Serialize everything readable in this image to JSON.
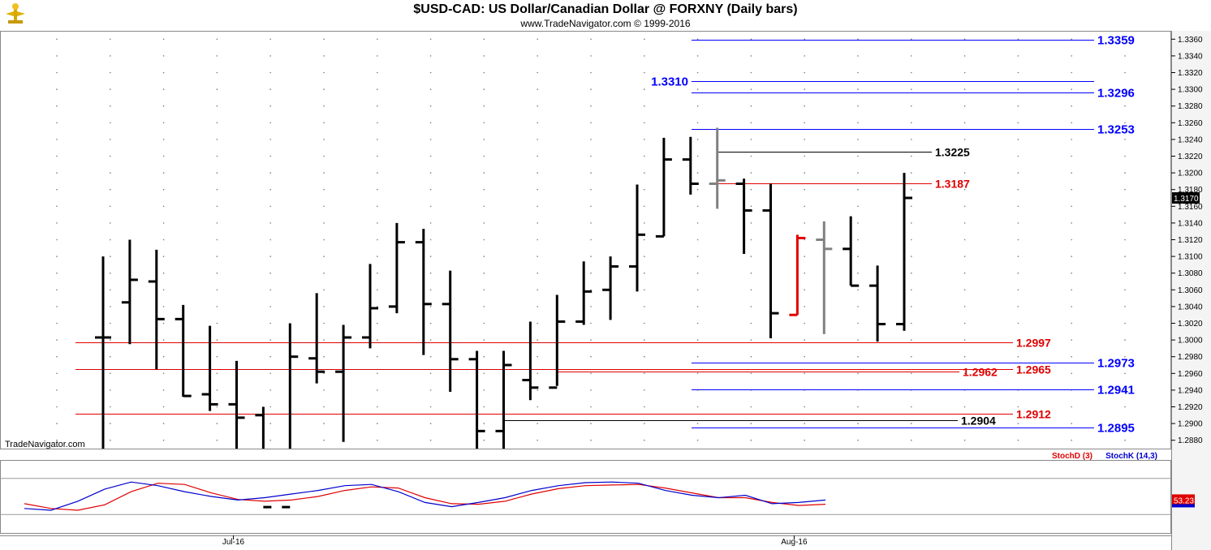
{
  "header": {
    "title": "$USD-CAD:  US Dollar/Canadian Dollar @ FORXNY  (Daily bars)",
    "subtitle": "www.TradeNavigator.com © 1999-2016"
  },
  "watermark": "TradeNavigator.com",
  "current_price_label": "1.3170",
  "indicator": {
    "legend_d": "StochD (3)",
    "legend_k": "StochK (14,3)",
    "value_label": "53.23",
    "color_d": "#e00000",
    "color_k": "#0000cc"
  },
  "x_labels": [
    {
      "text": "Jul-16",
      "bar": 5
    },
    {
      "text": "Aug-16",
      "bar": 26
    }
  ],
  "chart_data": {
    "type": "ohlc",
    "y_range": [
      1.287,
      1.337
    ],
    "y_ticks": [
      "1.2880",
      "1.2900",
      "1.2920",
      "1.2940",
      "1.2960",
      "1.2980",
      "1.3000",
      "1.3020",
      "1.3040",
      "1.3060",
      "1.3080",
      "1.3100",
      "1.3120",
      "1.3140",
      "1.3160",
      "1.3180",
      "1.3200",
      "1.3220",
      "1.3240",
      "1.3260",
      "1.3280",
      "1.3300",
      "1.3320",
      "1.3340",
      "1.3360"
    ],
    "bars": [
      {
        "o": 1.3003,
        "h": 1.31,
        "l": 1.28,
        "c": 1.3003,
        "color": "#000000"
      },
      {
        "o": 1.3045,
        "h": 1.312,
        "l": 1.2995,
        "c": 1.3072,
        "color": "#000000"
      },
      {
        "o": 1.307,
        "h": 1.3108,
        "l": 1.2965,
        "c": 1.3025,
        "color": "#000000"
      },
      {
        "o": 1.3025,
        "h": 1.3042,
        "l": 1.2932,
        "c": 1.2933,
        "color": "#000000"
      },
      {
        "o": 1.2935,
        "h": 1.3017,
        "l": 1.2915,
        "c": 1.2923,
        "color": "#000000"
      },
      {
        "o": 1.2923,
        "h": 1.2975,
        "l": 1.28,
        "c": 1.2907,
        "color": "#000000"
      },
      {
        "o": 1.291,
        "h": 1.292,
        "l": 1.28,
        "c": 1.28,
        "color": "#000000"
      },
      {
        "o": 1.28,
        "h": 1.302,
        "l": 1.28,
        "c": 1.298,
        "color": "#000000"
      },
      {
        "o": 1.2978,
        "h": 1.3056,
        "l": 1.2948,
        "c": 1.2962,
        "color": "#000000"
      },
      {
        "o": 1.2962,
        "h": 1.3018,
        "l": 1.2878,
        "c": 1.3003,
        "color": "#000000"
      },
      {
        "o": 1.3003,
        "h": 1.3091,
        "l": 1.299,
        "c": 1.3038,
        "color": "#000000"
      },
      {
        "o": 1.304,
        "h": 1.314,
        "l": 1.3032,
        "c": 1.3117,
        "color": "#000000"
      },
      {
        "o": 1.3117,
        "h": 1.3133,
        "l": 1.2982,
        "c": 1.3043,
        "color": "#000000"
      },
      {
        "o": 1.3043,
        "h": 1.3083,
        "l": 1.2938,
        "c": 1.2977,
        "color": "#000000"
      },
      {
        "o": 1.2977,
        "h": 1.2987,
        "l": 1.28,
        "c": 1.2891,
        "color": "#000000"
      },
      {
        "o": 1.2891,
        "h": 1.2987,
        "l": 1.28,
        "c": 1.297,
        "color": "#000000"
      },
      {
        "o": 1.2952,
        "h": 1.3022,
        "l": 1.2928,
        "c": 1.2943,
        "color": "#000000"
      },
      {
        "o": 1.2943,
        "h": 1.3054,
        "l": 1.2945,
        "c": 1.3022,
        "color": "#000000"
      },
      {
        "o": 1.3022,
        "h": 1.3094,
        "l": 1.3018,
        "c": 1.3058,
        "color": "#000000"
      },
      {
        "o": 1.306,
        "h": 1.31,
        "l": 1.3024,
        "c": 1.3088,
        "color": "#000000"
      },
      {
        "o": 1.3088,
        "h": 1.3186,
        "l": 1.3058,
        "c": 1.3126,
        "color": "#000000"
      },
      {
        "o": 1.3124,
        "h": 1.3242,
        "l": 1.3124,
        "c": 1.3216,
        "color": "#000000"
      },
      {
        "o": 1.3216,
        "h": 1.3243,
        "l": 1.3174,
        "c": 1.3187,
        "color": "#000000"
      },
      {
        "o": 1.3187,
        "h": 1.3254,
        "l": 1.3157,
        "c": 1.3191,
        "color": "#808080"
      },
      {
        "o": 1.3187,
        "h": 1.3193,
        "l": 1.3103,
        "c": 1.3155,
        "color": "#000000"
      },
      {
        "o": 1.3155,
        "h": 1.3187,
        "l": 1.3002,
        "c": 1.3032,
        "color": "#000000"
      },
      {
        "o": 1.303,
        "h": 1.3126,
        "l": 1.303,
        "c": 1.3122,
        "color": "#e00000"
      },
      {
        "o": 1.312,
        "h": 1.3142,
        "l": 1.3007,
        "c": 1.3109,
        "color": "#808080"
      },
      {
        "o": 1.3109,
        "h": 1.3148,
        "l": 1.3065,
        "c": 1.3065,
        "color": "#000000"
      },
      {
        "o": 1.3065,
        "h": 1.3089,
        "l": 1.2998,
        "c": 1.3019,
        "color": "#000000"
      },
      {
        "o": 1.3019,
        "h": 1.32,
        "l": 1.3011,
        "c": 1.317,
        "color": "#000000"
      }
    ],
    "levels": [
      {
        "value": 1.3359,
        "label": "1.3359",
        "color": "#0000ff",
        "label_pos": "right",
        "from_bar": 22
      },
      {
        "value": 1.331,
        "label": "1.3310",
        "color": "#0000ff",
        "label_pos": "left",
        "from_bar": 22
      },
      {
        "value": 1.3296,
        "label": "1.3296",
        "color": "#0000ff",
        "label_pos": "right",
        "from_bar": 22
      },
      {
        "value": 1.3253,
        "label": "1.3253",
        "color": "#0000ff",
        "label_pos": "right",
        "from_bar": 22
      },
      {
        "value": 1.3225,
        "label": "1.3225",
        "color": "#000000",
        "label_pos": "mid",
        "from_bar": 23
      },
      {
        "value": 1.3187,
        "label": "1.3187",
        "color": "#e00000",
        "label_pos": "mid",
        "from_bar": 23
      },
      {
        "value": 1.2997,
        "label": "1.2997",
        "color": "#e00000",
        "label_pos": "far",
        "from_bar": -1
      },
      {
        "value": 1.2973,
        "label": "1.2973",
        "color": "#0000ff",
        "label_pos": "right",
        "from_bar": 22
      },
      {
        "value": 1.2965,
        "label": "1.2965",
        "color": "#e00000",
        "label_pos": "far",
        "from_bar": -1
      },
      {
        "value": 1.2962,
        "label": "1.2962",
        "color": "#e00000",
        "label_pos": "mid",
        "from_bar": 17
      },
      {
        "value": 1.2941,
        "label": "1.2941",
        "color": "#0000ff",
        "label_pos": "right",
        "from_bar": 22
      },
      {
        "value": 1.2912,
        "label": "1.2912",
        "color": "#e00000",
        "label_pos": "far",
        "from_bar": -1
      },
      {
        "value": 1.2904,
        "label": "1.2904",
        "color": "#000000",
        "label_pos": "mid",
        "from_bar": 15
      },
      {
        "value": 1.2895,
        "label": "1.2895",
        "color": "#0000ff",
        "label_pos": "right",
        "from_bar": 22
      }
    ],
    "stoch_d": [
      38,
      30,
      27,
      36,
      58,
      72,
      70,
      56,
      45,
      42,
      44,
      50,
      60,
      66,
      64,
      48,
      38,
      37,
      42,
      54,
      63,
      68,
      69,
      70,
      64,
      56,
      48,
      48,
      40,
      35,
      37
    ],
    "stoch_k": [
      30,
      27,
      42,
      62,
      74,
      68,
      58,
      50,
      44,
      48,
      54,
      60,
      68,
      70,
      58,
      40,
      33,
      40,
      48,
      60,
      68,
      73,
      74,
      72,
      60,
      52,
      48,
      52,
      38,
      40,
      44
    ]
  }
}
